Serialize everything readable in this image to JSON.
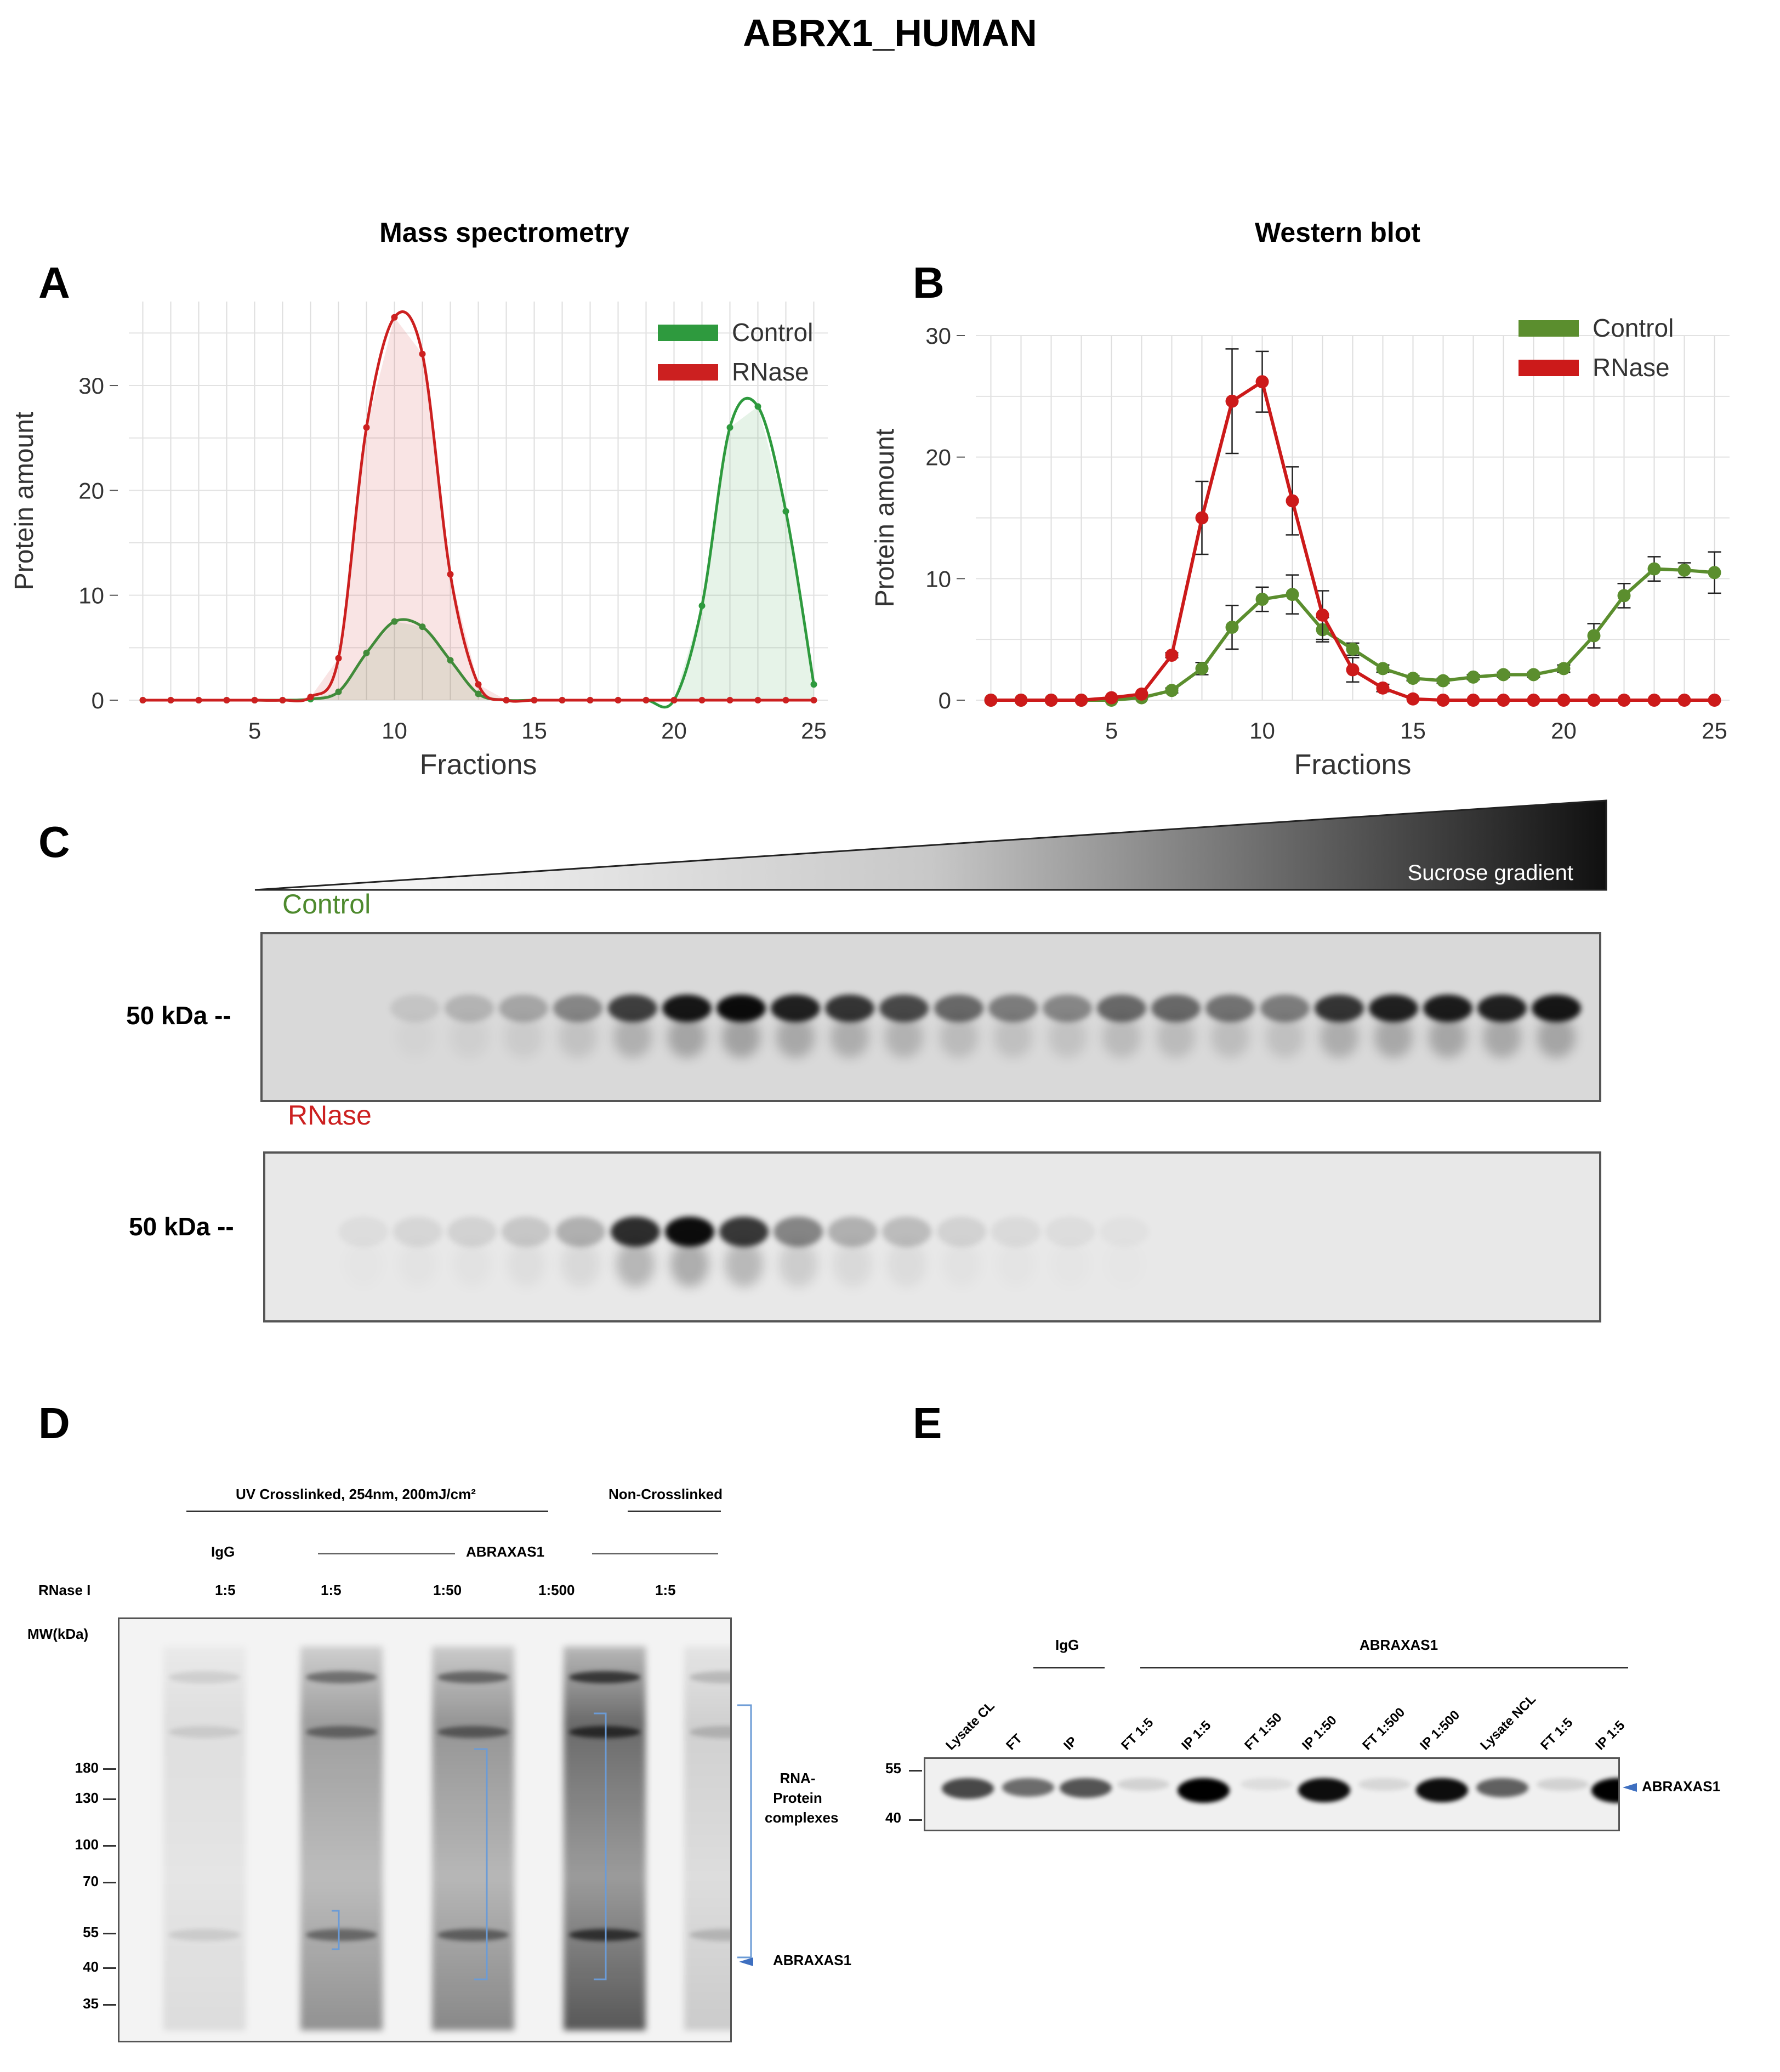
{
  "title": "ABRX1_HUMAN",
  "panelA": {
    "letter": "A",
    "heading": "Mass spectrometry",
    "chart_data": {
      "type": "line",
      "title": "Mass spectrometry",
      "xlabel": "Fractions",
      "ylabel": "Protein amount",
      "xlim": [
        0.5,
        25.5
      ],
      "ylim": [
        0,
        38
      ],
      "xticks": [
        5,
        10,
        15,
        20,
        25
      ],
      "yticks": [
        0,
        10,
        20,
        30
      ],
      "legend": [
        "Control",
        "RNase"
      ],
      "colors": {
        "Control": "#2e9a3e",
        "RNase": "#cc2020"
      },
      "x": [
        1,
        2,
        3,
        4,
        5,
        6,
        7,
        8,
        9,
        10,
        11,
        12,
        13,
        14,
        15,
        16,
        17,
        18,
        19,
        20,
        21,
        22,
        23,
        24,
        25
      ],
      "series": [
        {
          "name": "Control",
          "values": [
            0,
            0,
            0,
            0,
            0,
            0,
            0.1,
            0.8,
            4.5,
            7.5,
            7.0,
            3.8,
            0.6,
            0,
            0,
            0,
            0,
            0,
            0,
            0,
            9,
            26,
            28,
            18,
            1.5
          ]
        },
        {
          "name": "RNase",
          "values": [
            0,
            0,
            0,
            0,
            0,
            0,
            0.3,
            4,
            26,
            36.5,
            33,
            12,
            1.5,
            0,
            0,
            0,
            0,
            0,
            0,
            0,
            0,
            0,
            0,
            0,
            0
          ]
        }
      ]
    }
  },
  "panelB": {
    "letter": "B",
    "heading": "Western blot",
    "chart_data": {
      "type": "line",
      "title": "Western blot",
      "xlabel": "Fractions",
      "ylabel": "Protein amount",
      "xlim": [
        0.5,
        25.5
      ],
      "ylim": [
        0,
        30
      ],
      "xticks": [
        5,
        10,
        15,
        20,
        25
      ],
      "yticks": [
        0,
        10,
        20,
        30
      ],
      "legend": [
        "Control",
        "RNase"
      ],
      "colors": {
        "Control": "#5b8e2e",
        "RNase": "#cc1a1a"
      },
      "x": [
        1,
        2,
        3,
        4,
        5,
        6,
        7,
        8,
        9,
        10,
        11,
        12,
        13,
        14,
        15,
        16,
        17,
        18,
        19,
        20,
        21,
        22,
        23,
        24,
        25
      ],
      "series": [
        {
          "name": "Control",
          "values": [
            0,
            0,
            0,
            0,
            0,
            0.2,
            0.8,
            2.6,
            6.0,
            8.3,
            8.7,
            5.8,
            4.2,
            2.6,
            1.8,
            1.6,
            1.9,
            2.1,
            2.1,
            2.6,
            5.3,
            8.6,
            10.8,
            10.7,
            10.5
          ],
          "errors": [
            0,
            0,
            0,
            0,
            0,
            0,
            0.2,
            0.5,
            1.8,
            1.0,
            1.6,
            1.0,
            0.5,
            0.3,
            0.2,
            0.2,
            0.2,
            0.2,
            0.2,
            0.3,
            1.0,
            1.0,
            1.0,
            0.6,
            1.7
          ]
        },
        {
          "name": "RNase",
          "values": [
            0,
            0,
            0,
            0,
            0.2,
            0.5,
            3.7,
            15.0,
            24.6,
            26.2,
            16.4,
            7.0,
            2.5,
            1.0,
            0.1,
            0,
            0,
            0,
            0,
            0,
            0,
            0,
            0,
            0,
            0
          ],
          "errors": [
            0,
            0,
            0,
            0,
            0,
            0,
            0.2,
            3.0,
            4.3,
            2.5,
            2.8,
            2.0,
            1.0,
            0.3,
            0,
            0,
            0,
            0,
            0,
            0,
            0,
            0,
            0,
            0,
            0
          ]
        }
      ]
    }
  },
  "panelC": {
    "letter": "C",
    "gradient_label": "Sucrose gradient",
    "control_label": "Control",
    "rnase_label": "RNase",
    "marker": "50 kDa --",
    "control_intensity": [
      0,
      0,
      0.1,
      0.18,
      0.25,
      0.4,
      0.75,
      0.95,
      1.0,
      0.9,
      0.8,
      0.7,
      0.55,
      0.45,
      0.4,
      0.55,
      0.55,
      0.5,
      0.45,
      0.8,
      0.9,
      0.92,
      0.9,
      0.95
    ],
    "rnase_intensity": [
      0,
      0.05,
      0.08,
      0.1,
      0.15,
      0.25,
      0.85,
      1.0,
      0.8,
      0.45,
      0.25,
      0.2,
      0.1,
      0.06,
      0.05,
      0.03,
      0,
      0,
      0,
      0,
      0,
      0,
      0,
      0
    ]
  },
  "panelD": {
    "letter": "D",
    "uv_header": "UV Crosslinked, 254nm, 200mJ/cm²",
    "noncl_header": "Non-Crosslinked",
    "igg_label": "IgG",
    "abraxas_label": "ABRAXAS1",
    "rnase_label": "RNase I",
    "dilutions": [
      "1:5",
      "1:5",
      "1:50",
      "1:500",
      "1:5"
    ],
    "mw_label": "MW(kDa)",
    "mw_markers": [
      "180",
      "130",
      "100",
      "70",
      "55",
      "40",
      "35"
    ],
    "complex_label": "RNA-\nProtein\ncomplexes",
    "protein_label": "ABRAXAS1"
  },
  "panelE": {
    "letter": "E",
    "igg_label": "IgG",
    "abraxas_label": "ABRAXAS1",
    "lanes": [
      "Lysate CL",
      "FT",
      "IP",
      "FT 1:5",
      "IP 1:5",
      "FT 1:50",
      "IP 1:50",
      "FT 1:500",
      "IP 1:500",
      "Lysate NCL",
      "FT 1:5",
      "IP 1:5"
    ],
    "lane_intensity": [
      0.7,
      0.55,
      0.65,
      0.12,
      1.0,
      0.08,
      0.95,
      0.1,
      0.95,
      0.6,
      0.12,
      1.0
    ],
    "mw_markers": [
      "55",
      "40"
    ],
    "protein_label": "ABRAXAS1"
  }
}
